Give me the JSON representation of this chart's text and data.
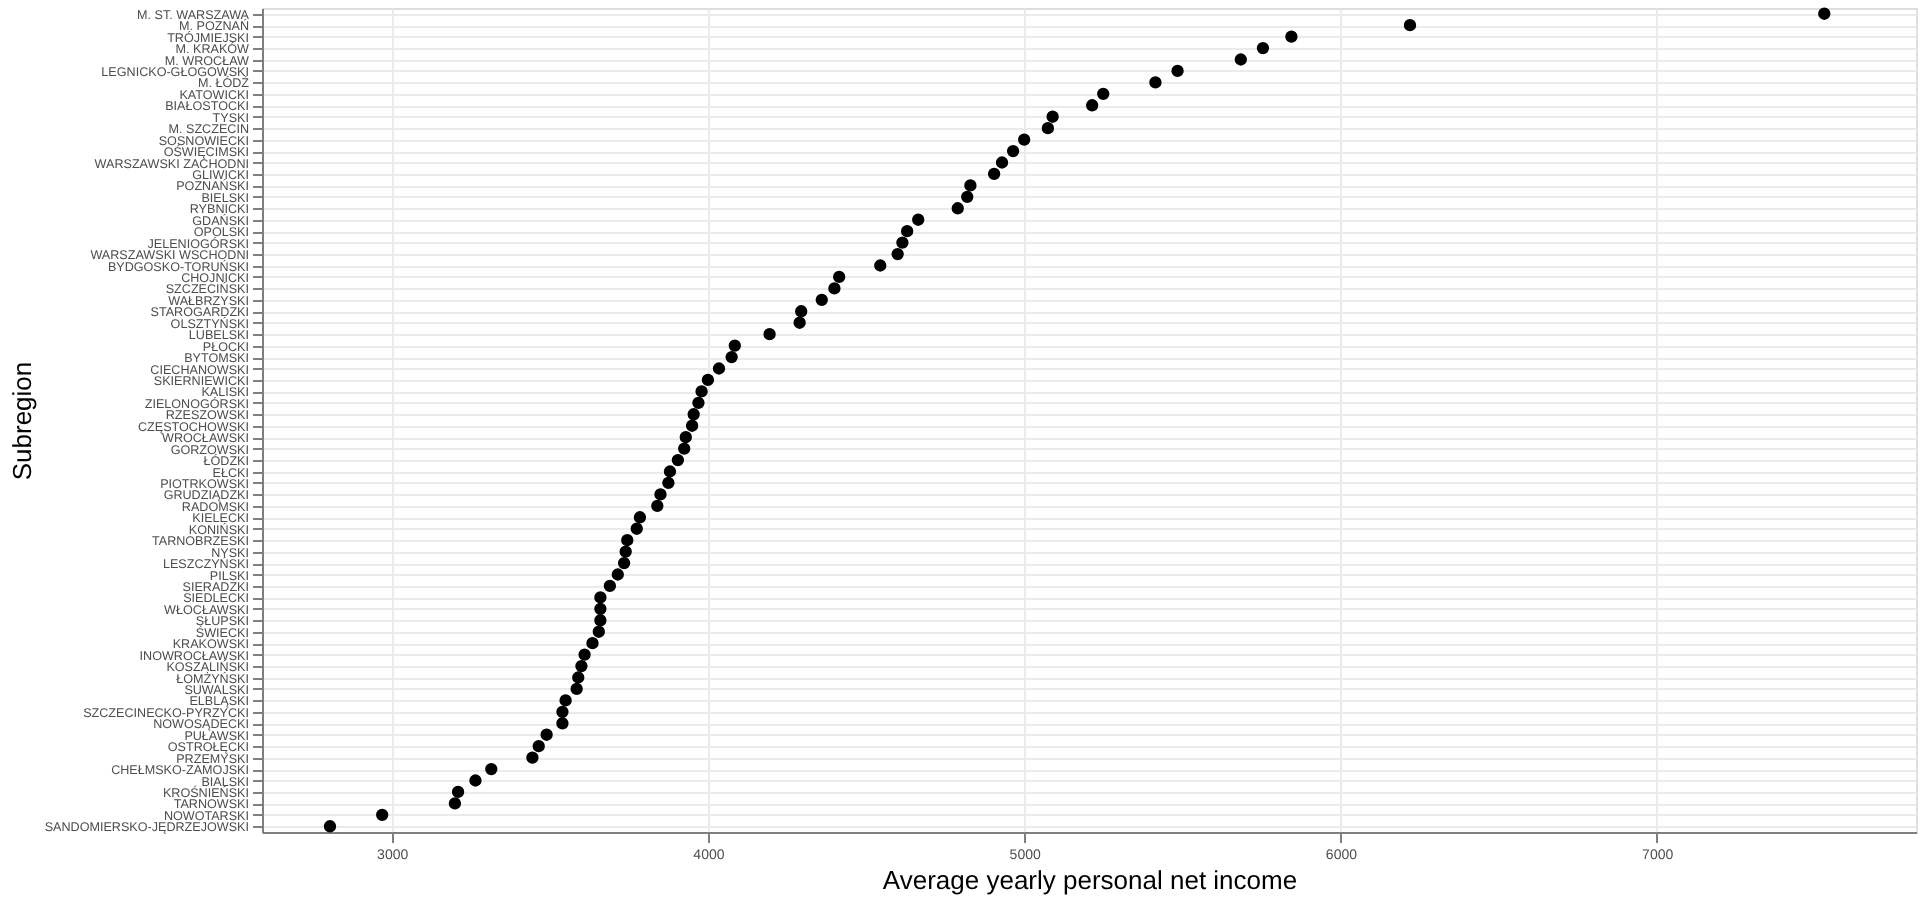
{
  "chart_data": {
    "type": "scatter",
    "xlabel": "Average yearly personal net income",
    "ylabel": "Subregion",
    "categories": [
      "M. ST. WARSZAWA",
      "M. POZNAŃ",
      "TRÓJMIEJSKI",
      "M. KRAKÓW",
      "M. WROCŁAW",
      "LEGNICKO-GŁOGOWSKI",
      "M. ŁÓDŹ",
      "KATOWICKI",
      "BIAŁOSTOCKI",
      "TYSKI",
      "M. SZCZECIN",
      "SOSNOWIECKI",
      "OŚWIĘCIMSKI",
      "WARSZAWSKI ZACHODNI",
      "GLIWICKI",
      "POZNAŃSKI",
      "BIELSKI",
      "RYBNICKI",
      "GDAŃSKI",
      "OPOLSKI",
      "JELENIOGÓRSKI",
      "WARSZAWSKI WSCHODNI",
      "BYDGOSKO-TORUŃSKI",
      "CHOJNICKI",
      "SZCZECIŃSKI",
      "WAŁBRZYSKI",
      "STAROGARDZKI",
      "OLSZTYŃSKI",
      "LUBELSKI",
      "PŁOCKI",
      "BYTOMSKI",
      "CIECHANOWSKI",
      "SKIERNIEWICKI",
      "KALISKI",
      "ZIELONOGÓRSKI",
      "RZESZOWSKI",
      "CZĘSTOCHOWSKI",
      "WROCŁAWSKI",
      "GORZOWSKI",
      "ŁÓDZKI",
      "EŁCKI",
      "PIOTRKOWSKI",
      "GRUDZIĄDZKI",
      "RADOMSKI",
      "KIELECKI",
      "KONIŃSKI",
      "TARNOBRZESKI",
      "NYSKI",
      "LESZCZYŃSKI",
      "PILSKI",
      "SIERADZKI",
      "SIEDLECKI",
      "WŁOCŁAWSKI",
      "SŁUPSKI",
      "ŚWIECKI",
      "KRAKOWSKI",
      "INOWROCŁAWSKI",
      "KOSZALIŃSKI",
      "ŁOMŻYŃSKI",
      "SUWALSKI",
      "ELBLĄSKI",
      "SZCZECINECKO-PYRZYCKI",
      "NOWOSĄDECKI",
      "PUŁAWSKI",
      "OSTROŁĘCKI",
      "PRZEMYSKI",
      "CHEŁMSKO-ZAMOJSKI",
      "BIALSKI",
      "KROŚNIEŃSKI",
      "TARNOWSKI",
      "NOWOTARSKI",
      "SANDOMIERSKO-JĘDRZEJOWSKI"
    ],
    "series": [
      {
        "color": "#000000",
        "values": [
          7530,
          6220,
          5845,
          5755,
          5685,
          5485,
          5415,
          5250,
          5215,
          5090,
          5075,
          5000,
          4965,
          4930,
          4905,
          4830,
          4820,
          4790,
          4665,
          4630,
          4615,
          4600,
          4545,
          4415,
          4400,
          4360,
          4295,
          4290,
          4195,
          4085,
          4075,
          4035,
          4000,
          3980,
          3970,
          3955,
          3950,
          3930,
          3925,
          3905,
          3880,
          3875,
          3850,
          3840,
          3785,
          3775,
          3745,
          3740,
          3735,
          3715,
          3690,
          3660,
          3660,
          3660,
          3655,
          3635,
          3610,
          3600,
          3590,
          3585,
          3550,
          3540,
          3540,
          3490,
          3465,
          3445,
          3315,
          3265,
          3210,
          3200,
          2970,
          2805
        ]
      }
    ],
    "xlim": [
      2590,
      7820
    ],
    "xticks": [
      3000,
      4000,
      5000,
      6000,
      7000
    ],
    "grid": true,
    "legend": false,
    "marker": "circle",
    "orientation": "horizontal"
  }
}
